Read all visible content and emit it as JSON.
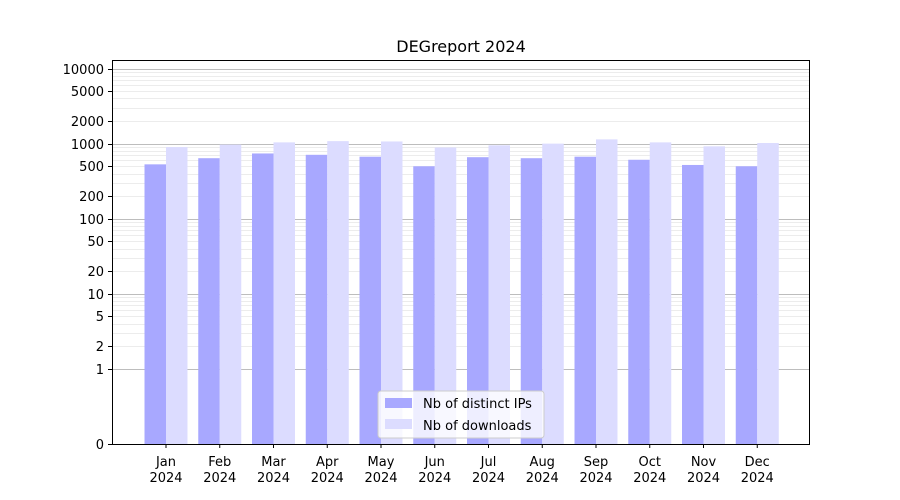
{
  "chart_data": {
    "type": "bar",
    "title": "DEGreport 2024",
    "xlabel": "",
    "ylabel": "",
    "y_scale": "symlog",
    "ylim": [
      0,
      13000
    ],
    "y_ticks": [
      0,
      1,
      2,
      5,
      10,
      20,
      50,
      100,
      200,
      500,
      1000,
      2000,
      5000,
      10000
    ],
    "grid": "horizontal (major and minor)",
    "legend_position": "bottom-center",
    "categories": [
      "Jan\n2024",
      "Feb\n2024",
      "Mar\n2024",
      "Apr\n2024",
      "May\n2024",
      "Jun\n2024",
      "Jul\n2024",
      "Aug\n2024",
      "Sep\n2024",
      "Oct\n2024",
      "Nov\n2024",
      "Dec\n2024"
    ],
    "series": [
      {
        "name": "Nb of distinct IPs",
        "color": "#a8a8ff",
        "values": [
          530,
          640,
          740,
          710,
          670,
          500,
          660,
          640,
          670,
          610,
          520,
          500
        ]
      },
      {
        "name": "Nb of downloads",
        "color": "#dcdcff",
        "values": [
          900,
          970,
          1040,
          1080,
          1070,
          890,
          950,
          1000,
          1140,
          1040,
          920,
          1020
        ]
      }
    ]
  }
}
